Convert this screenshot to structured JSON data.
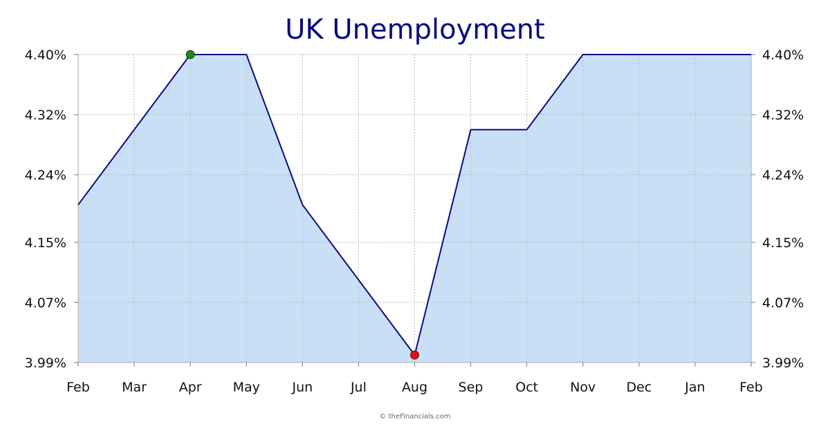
{
  "chart_data": {
    "type": "area",
    "title": "UK Unemployment",
    "x": [
      "Feb",
      "Mar",
      "Apr",
      "May",
      "Jun",
      "Jul",
      "Aug",
      "Sep",
      "Oct",
      "Nov",
      "Dec",
      "Jan",
      "Feb"
    ],
    "series": [
      {
        "values": [
          4.2,
          4.3,
          4.4,
          4.4,
          4.2,
          4.1,
          4.0,
          4.3,
          4.3,
          4.4,
          4.4,
          4.4,
          4.4
        ]
      }
    ],
    "ylim": [
      3.99,
      4.4
    ],
    "yticks": [
      "4.40%",
      "4.32%",
      "4.24%",
      "4.15%",
      "4.07%",
      "3.99%"
    ],
    "ytick_values": [
      4.4,
      4.32,
      4.24,
      4.15,
      4.07,
      3.99
    ],
    "right_axis": true,
    "grid": true,
    "high_point": {
      "x": "Apr",
      "value": 4.4,
      "color": "#1a8a1a"
    },
    "low_point": {
      "x": "Aug",
      "value": 4.0,
      "color": "#dd1111"
    },
    "colors": {
      "line": "#0a0a80",
      "fill": "#c9dff6",
      "grid": "#b8b8b8",
      "axis": "#aaaaaa"
    }
  },
  "credit": "© theFinancials.com"
}
